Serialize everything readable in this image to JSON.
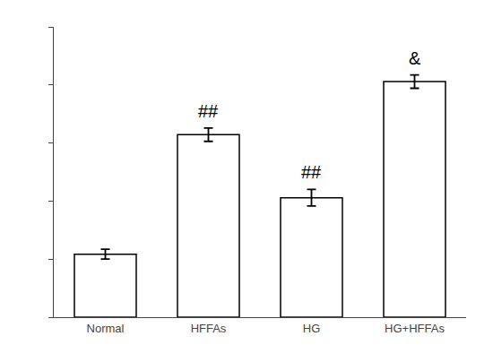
{
  "chart_data": {
    "type": "bar",
    "categories": [
      "Normal",
      "HFFAs",
      "HG",
      "HG+HFFAs"
    ],
    "values": [
      0.38,
      1.1,
      0.72,
      1.42
    ],
    "errors": [
      0.03,
      0.04,
      0.05,
      0.04
    ],
    "annotations": [
      null,
      "##",
      "##",
      "&"
    ],
    "color": "#ffffff",
    "ylim": [
      0,
      1.75
    ],
    "yticks": [
      0.0,
      0.35,
      0.7,
      1.05,
      1.4,
      1.75
    ],
    "grid": false,
    "tick_labels": "x"
  }
}
